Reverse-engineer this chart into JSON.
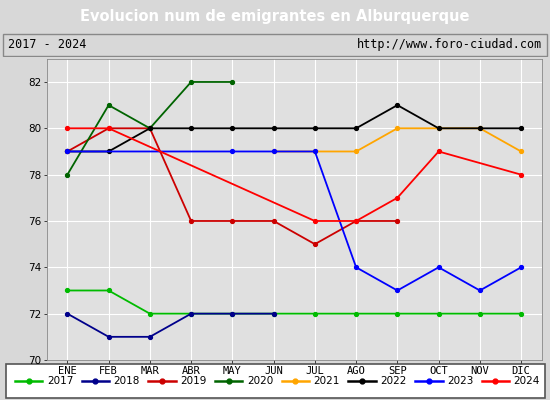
{
  "title": "Evolucion num de emigrantes en Alburquerque",
  "subtitle_left": "2017 - 2024",
  "subtitle_right": "http://www.foro-ciudad.com",
  "x_labels": [
    "ENE",
    "FEB",
    "MAR",
    "ABR",
    "MAY",
    "JUN",
    "JUL",
    "AGO",
    "SEP",
    "OCT",
    "NOV",
    "DIC"
  ],
  "ylim": [
    70,
    83
  ],
  "yticks": [
    70,
    72,
    74,
    76,
    78,
    80,
    82
  ],
  "series": {
    "2017": {
      "color": "#00bb00",
      "values": [
        73,
        73,
        72,
        72,
        72,
        72,
        72,
        72,
        72,
        72,
        72,
        72
      ]
    },
    "2018": {
      "color": "#00008b",
      "values": [
        72,
        71,
        71,
        72,
        72,
        72,
        null,
        null,
        null,
        null,
        null,
        null
      ]
    },
    "2019": {
      "color": "#cc0000",
      "values": [
        79,
        80,
        80,
        76,
        76,
        76,
        75,
        76,
        76,
        null,
        null,
        null
      ]
    },
    "2020": {
      "color": "#006400",
      "values": [
        78,
        81,
        80,
        82,
        82,
        null,
        null,
        null,
        null,
        null,
        null,
        null
      ]
    },
    "2021": {
      "color": "#ffa500",
      "values": [
        null,
        null,
        null,
        null,
        null,
        79,
        79,
        79,
        80,
        80,
        80,
        79
      ]
    },
    "2022": {
      "color": "#000000",
      "values": [
        79,
        79,
        80,
        80,
        80,
        80,
        80,
        80,
        81,
        80,
        80,
        80
      ]
    },
    "2023": {
      "color": "#0000ff",
      "values": [
        79,
        null,
        null,
        null,
        79,
        79,
        79,
        74,
        73,
        74,
        73,
        74
      ]
    },
    "2024": {
      "color": "#ff0000",
      "values": [
        80,
        80,
        null,
        null,
        null,
        null,
        76,
        76,
        77,
        79,
        null,
        78
      ]
    }
  },
  "bg_color": "#d8d8d8",
  "plot_bg_color": "#e0e0e0",
  "title_bg_color": "#4472c4",
  "title_text_color": "#ffffff",
  "grid_color": "#ffffff",
  "legend_bg": "#ffffff",
  "subtitle_bg": "#d8d8d8"
}
